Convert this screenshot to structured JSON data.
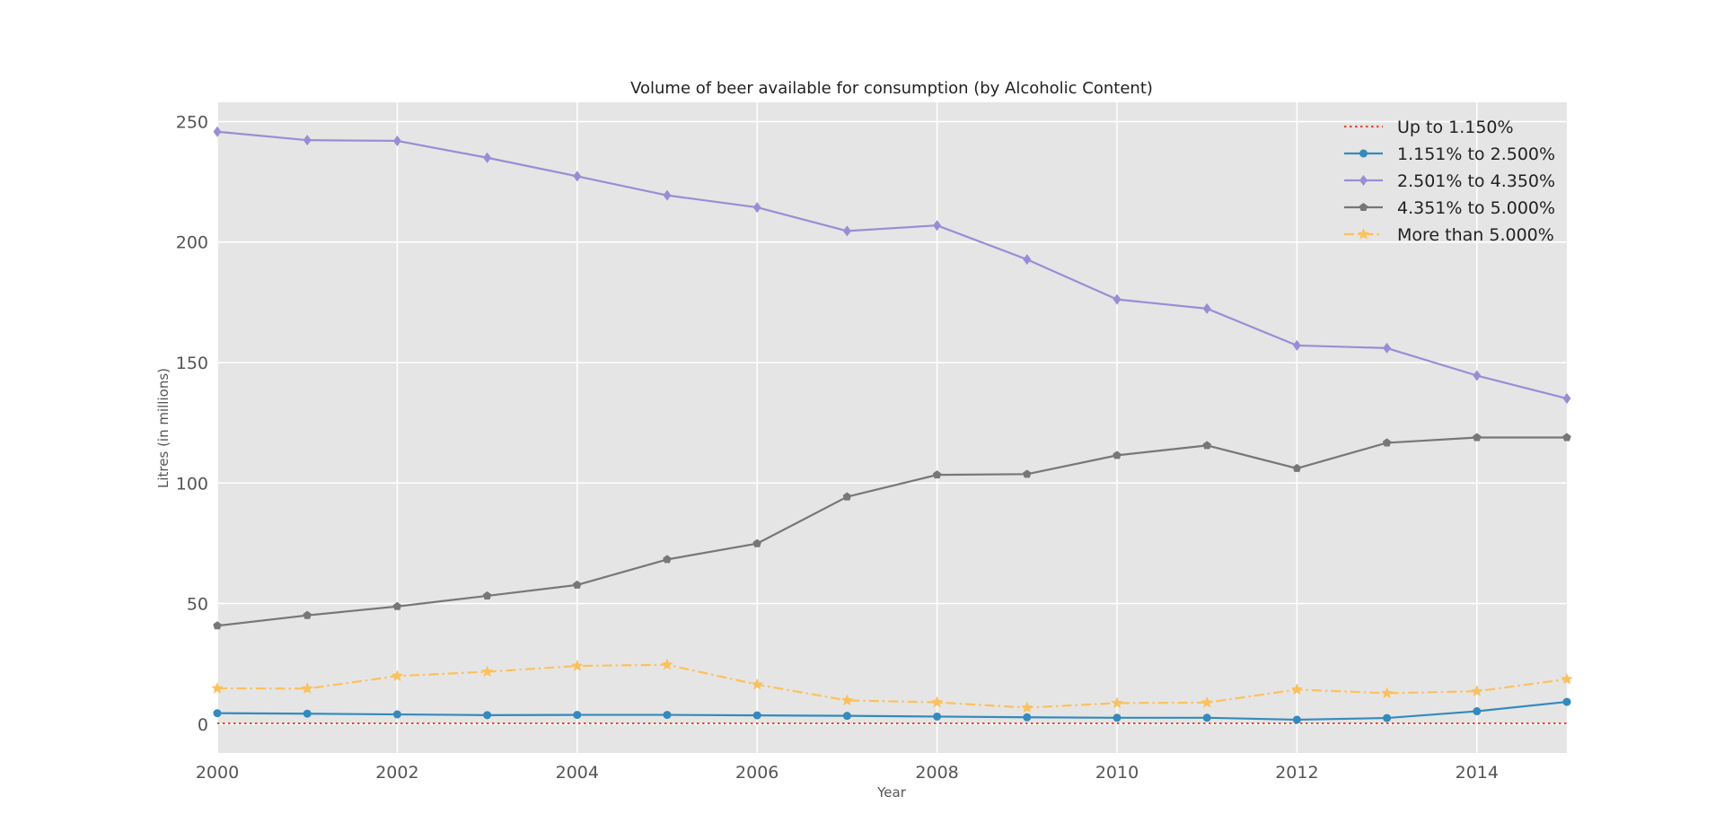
{
  "chart_data": {
    "type": "line",
    "title": "Volume of beer available for consumption (by Alcoholic Content)",
    "xlabel": "Year",
    "ylabel": "Litres (in millions)",
    "xlim": [
      2000,
      2015
    ],
    "ylim": [
      -12,
      258
    ],
    "xticks": [
      2000,
      2002,
      2004,
      2006,
      2008,
      2010,
      2012,
      2014
    ],
    "yticks": [
      0,
      50,
      100,
      150,
      200,
      250
    ],
    "grid": true,
    "background": "#e5e5e5",
    "legend_position": "top-right",
    "x": [
      2000,
      2001,
      2002,
      2003,
      2004,
      2005,
      2006,
      2007,
      2008,
      2009,
      2010,
      2011,
      2012,
      2013,
      2014,
      2015
    ],
    "series": [
      {
        "name": "Up to 1.150%",
        "color": "#e24a33",
        "style": "dotted",
        "marker": "none",
        "values": [
          0.3,
          0.3,
          0.3,
          0.3,
          0.3,
          0.3,
          0.3,
          0.3,
          0.3,
          0.3,
          0.3,
          0.3,
          0.3,
          0.3,
          0.3,
          0.3
        ]
      },
      {
        "name": "1.151% to 2.500%",
        "color": "#348abd",
        "style": "solid",
        "marker": "circle",
        "values": [
          4.5,
          4.3,
          4.0,
          3.7,
          3.8,
          3.8,
          3.6,
          3.4,
          3.1,
          2.8,
          2.6,
          2.6,
          1.8,
          2.5,
          5.3,
          9.2
        ]
      },
      {
        "name": "2.501% to 4.350%",
        "color": "#988ed5",
        "style": "solid",
        "marker": "diamond",
        "values": [
          245.8,
          242.3,
          242.0,
          235.0,
          227.3,
          219.4,
          214.4,
          204.6,
          206.9,
          192.8,
          176.2,
          172.4,
          157.1,
          156.0,
          144.6,
          135.1
        ]
      },
      {
        "name": "4.351% to 5.000%",
        "color": "#777777",
        "style": "solid",
        "marker": "pentagon",
        "values": [
          40.8,
          45.1,
          48.8,
          53.2,
          57.7,
          68.3,
          74.9,
          94.3,
          103.4,
          103.7,
          111.5,
          115.6,
          106.1,
          116.7,
          118.9,
          118.9
        ]
      },
      {
        "name": "More than 5.000%",
        "color": "#fbc15e",
        "style": "dashdot",
        "marker": "star",
        "values": [
          14.8,
          14.7,
          19.9,
          21.7,
          24.1,
          24.6,
          16.4,
          9.8,
          9.0,
          6.8,
          8.7,
          8.9,
          14.3,
          12.8,
          13.6,
          18.6
        ]
      }
    ]
  }
}
